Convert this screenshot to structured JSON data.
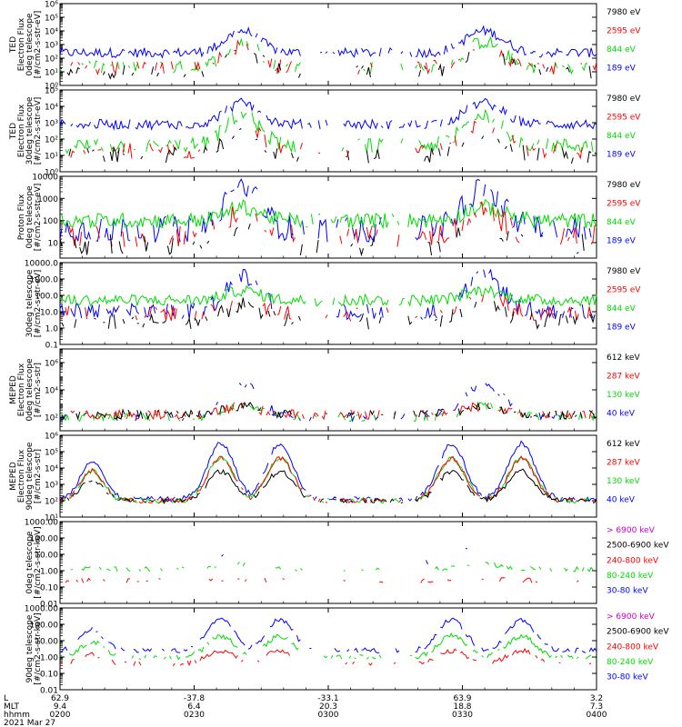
{
  "chart_data": {
    "type": "line",
    "figure": "POES/MetOp TED and MEPED particle flux stack plot",
    "panels": [
      {
        "ylabel_lines": [
          "TED",
          "Electron Flux",
          "0deg telescope",
          "[#/cm2-s-str-eV]"
        ],
        "yscale": "log",
        "ylim_exp": [
          0,
          6
        ],
        "ticks": [
          {
            "v": 0,
            "label": "10⁰"
          },
          {
            "v": 1,
            "label": "10¹"
          },
          {
            "v": 2,
            "label": "10²"
          },
          {
            "v": 3,
            "label": "10³"
          },
          {
            "v": 4,
            "label": "10⁴"
          },
          {
            "v": 5,
            "label": "10⁵"
          },
          {
            "v": 6,
            "label": "10⁶"
          }
        ],
        "series": [
          {
            "name": "7980 eV",
            "color": "#000000",
            "base": 1.0,
            "amp": 0.5,
            "storm": 1.5,
            "sparse": 0.55
          },
          {
            "name": "2595 eV",
            "color": "#ff0000",
            "base": 1.3,
            "amp": 0.5,
            "storm": 1.6,
            "sparse": 0.5
          },
          {
            "name": "844 eV",
            "color": "#00dd00",
            "base": 1.3,
            "amp": 0.5,
            "storm": 1.9,
            "sparse": 0.45
          },
          {
            "name": "189 eV",
            "color": "#0000ff",
            "base": 2.4,
            "amp": 0.35,
            "storm": 1.6,
            "sparse": 0.1
          }
        ]
      },
      {
        "ylabel_lines": [
          "TED",
          "Electron Flux",
          "30deg telescope",
          "[#/cm2-s-str-eV]"
        ],
        "yscale": "log",
        "ylim_exp": [
          0,
          5
        ],
        "ticks": [
          {
            "v": 0,
            "label": "10⁰"
          },
          {
            "v": 1,
            "label": "10¹"
          },
          {
            "v": 2,
            "label": "10²"
          },
          {
            "v": 3,
            "label": "10³"
          },
          {
            "v": 4,
            "label": "10⁴"
          },
          {
            "v": 5,
            "label": "10⁵"
          }
        ],
        "series": [
          {
            "name": "7980 eV",
            "color": "#000000",
            "base": 1.0,
            "amp": 0.5,
            "storm": 1.5,
            "sparse": 0.55
          },
          {
            "name": "2595 eV",
            "color": "#ff0000",
            "base": 1.3,
            "amp": 0.5,
            "storm": 1.6,
            "sparse": 0.5
          },
          {
            "name": "844 eV",
            "color": "#00dd00",
            "base": 1.6,
            "amp": 0.45,
            "storm": 1.9,
            "sparse": 0.35
          },
          {
            "name": "189 eV",
            "color": "#0000ff",
            "base": 2.9,
            "amp": 0.3,
            "storm": 1.3,
            "sparse": 0.1
          }
        ]
      },
      {
        "ylabel_lines": [
          "Proton Flux",
          "0deg telescope",
          "[#/cm2-s-str-eV]"
        ],
        "yscale": "log",
        "ylim_exp": [
          0.3,
          4
        ],
        "ticks": [
          {
            "v": 1,
            "label": "10"
          },
          {
            "v": 2,
            "label": "100"
          },
          {
            "v": 3,
            "label": "1000"
          },
          {
            "v": 4,
            "label": "10000"
          }
        ],
        "series": [
          {
            "name": "7980 eV",
            "color": "#000000",
            "base": 0.9,
            "amp": 0.5,
            "storm": 1.0,
            "sparse": 0.55
          },
          {
            "name": "2595 eV",
            "color": "#ff0000",
            "base": 1.3,
            "amp": 0.5,
            "storm": 1.1,
            "sparse": 0.45
          },
          {
            "name": "844 eV",
            "color": "#00dd00",
            "base": 2.0,
            "amp": 0.35,
            "storm": 0.6,
            "sparse": 0.0
          },
          {
            "name": "189 eV",
            "color": "#0000ff",
            "base": 1.6,
            "amp": 0.6,
            "storm": 1.9,
            "sparse": 0.2
          }
        ]
      },
      {
        "ylabel_lines": [
          "30deg telescope",
          "[#/cm2-s-str-eV]"
        ],
        "yscale": "log",
        "ylim_exp": [
          -1,
          4
        ],
        "ticks": [
          {
            "v": -1,
            "label": "0.1"
          },
          {
            "v": 0,
            "label": "1.0"
          },
          {
            "v": 1,
            "label": "10.0"
          },
          {
            "v": 2,
            "label": "100.0"
          },
          {
            "v": 3,
            "label": "1000.0"
          },
          {
            "v": 4,
            "label": "10000.0"
          }
        ],
        "series": [
          {
            "name": "7980 eV",
            "color": "#000000",
            "base": 0.4,
            "amp": 0.5,
            "storm": 1.0,
            "sparse": 0.5
          },
          {
            "name": "2595 eV",
            "color": "#ff0000",
            "base": 0.9,
            "amp": 0.5,
            "storm": 1.0,
            "sparse": 0.45
          },
          {
            "name": "844 eV",
            "color": "#00dd00",
            "base": 1.7,
            "amp": 0.35,
            "storm": 0.6,
            "sparse": 0.0
          },
          {
            "name": "189 eV",
            "color": "#0000ff",
            "base": 1.0,
            "amp": 0.5,
            "storm": 2.2,
            "sparse": 0.3
          }
        ]
      },
      {
        "ylabel_lines": [
          "MEPED",
          "Electron Flux",
          "0deg telescope",
          "[#/cm2-s-str]"
        ],
        "yscale": "log",
        "ylim_exp": [
          1,
          7
        ],
        "ticks": [
          {
            "v": 2,
            "label": "10²"
          },
          {
            "v": 4,
            "label": "10⁴"
          },
          {
            "v": 6,
            "label": "10⁶"
          }
        ],
        "series": [
          {
            "name": "612 keV",
            "color": "#000000",
            "base": 2.2,
            "amp": 0.35,
            "storm": 0.6,
            "sparse": 0.3
          },
          {
            "name": "287 keV",
            "color": "#ff0000",
            "base": 2.2,
            "amp": 0.35,
            "storm": 0.6,
            "sparse": 0.3
          },
          {
            "name": "130 keV",
            "color": "#00dd00",
            "base": 2.0,
            "amp": 0.3,
            "storm": 0.8,
            "sparse": 0.3
          },
          {
            "name": "40 keV",
            "color": "#0000ff",
            "base": 2.0,
            "amp": 0.3,
            "storm": 2.5,
            "sparse": 0.5
          }
        ]
      },
      {
        "ylabel_lines": [
          "MEPED",
          "Electron Flux",
          "90deg telescope",
          "[#/cm2-s-str]"
        ],
        "yscale": "log",
        "ylim_exp": [
          1,
          6
        ],
        "ticks": [
          {
            "v": 1,
            "label": "10¹"
          },
          {
            "v": 2,
            "label": "10²"
          },
          {
            "v": 3,
            "label": "10³"
          },
          {
            "v": 4,
            "label": "10⁴"
          },
          {
            "v": 5,
            "label": "10⁵"
          },
          {
            "v": 6,
            "label": "10⁶"
          }
        ],
        "lobes": true,
        "series": [
          {
            "name": "612 keV",
            "color": "#000000",
            "base": 2.0,
            "amp": 0.15,
            "storm": 1.8,
            "sparse": 0.2
          },
          {
            "name": "287 keV",
            "color": "#ff0000",
            "base": 2.0,
            "amp": 0.15,
            "storm": 2.6,
            "sparse": 0.2
          },
          {
            "name": "130 keV",
            "color": "#00dd00",
            "base": 2.0,
            "amp": 0.15,
            "storm": 2.6,
            "sparse": 0.2
          },
          {
            "name": "40 keV",
            "color": "#0000ff",
            "base": 2.1,
            "amp": 0.15,
            "storm": 3.4,
            "sparse": 0.1
          }
        ]
      },
      {
        "ylabel_lines": [
          "0deg telescope",
          "[#/cm2-s-str-keV]"
        ],
        "yscale": "log",
        "ylim_exp": [
          -2,
          3
        ],
        "ticks": [
          {
            "v": -2,
            "label": "0.01"
          },
          {
            "v": -1,
            "label": "0.10"
          },
          {
            "v": 0,
            "label": "1.00"
          },
          {
            "v": 1,
            "label": "10.00"
          },
          {
            "v": 2,
            "label": "100.00"
          },
          {
            "v": 3,
            "label": "1000.00"
          }
        ],
        "series": [
          {
            "name": "> 6900 keV",
            "color": "#cc00cc",
            "base": -3,
            "amp": 0,
            "storm": 0,
            "sparse": 1.0
          },
          {
            "name": "2500-6900 keV",
            "color": "#000000",
            "base": -3,
            "amp": 0,
            "storm": 0,
            "sparse": 1.0
          },
          {
            "name": "240-800 keV",
            "color": "#ff0000",
            "base": -0.6,
            "amp": 0.15,
            "storm": 0.1,
            "sparse": 0.6
          },
          {
            "name": "80-240 keV",
            "color": "#00dd00",
            "base": 0.1,
            "amp": 0.15,
            "storm": 0.3,
            "sparse": 0.5
          },
          {
            "name": "30-80 keV",
            "color": "#0000ff",
            "base": 0.5,
            "amp": 0.2,
            "storm": 1.2,
            "sparse": 0.85
          }
        ]
      },
      {
        "ylabel_lines": [
          "90deg telescope",
          "[#/cm2-s-str-keV]"
        ],
        "yscale": "log",
        "ylim_exp": [
          -2,
          3
        ],
        "ticks": [
          {
            "v": -2,
            "label": "0.01"
          },
          {
            "v": -1,
            "label": "0.10"
          },
          {
            "v": 0,
            "label": "1.00"
          },
          {
            "v": 1,
            "label": "10.00"
          },
          {
            "v": 2,
            "label": "100.00"
          },
          {
            "v": 3,
            "label": "1000.00"
          }
        ],
        "lobes": true,
        "series": [
          {
            "name": "> 6900 keV",
            "color": "#cc00cc",
            "base": -3,
            "amp": 0,
            "storm": 0,
            "sparse": 1.0
          },
          {
            "name": "2500-6900 keV",
            "color": "#000000",
            "base": -3,
            "amp": 0,
            "storm": 0,
            "sparse": 1.0
          },
          {
            "name": "240-800 keV",
            "color": "#ff0000",
            "base": -0.4,
            "amp": 0.15,
            "storm": 0.8,
            "sparse": 0.5
          },
          {
            "name": "80-240 keV",
            "color": "#00dd00",
            "base": 0.0,
            "amp": 0.15,
            "storm": 1.3,
            "sparse": 0.3
          },
          {
            "name": "30-80 keV",
            "color": "#0000ff",
            "base": 0.4,
            "amp": 0.15,
            "storm": 1.9,
            "sparse": 0.3
          }
        ]
      }
    ],
    "x_axis": {
      "row_labels": [
        "L",
        "MLT",
        "hhmm"
      ],
      "ticks": [
        {
          "L": "62.9",
          "MLT": "9.4",
          "hhmm": "0200"
        },
        {
          "L": "-37.8",
          "MLT": "6.4",
          "hhmm": "0230"
        },
        {
          "L": "-33.1",
          "MLT": "20.3",
          "hhmm": "0300"
        },
        {
          "L": "63.9",
          "MLT": "18.8",
          "hhmm": "0330"
        },
        {
          "L": "3.2",
          "MLT": "7.3",
          "hhmm": "0400"
        }
      ],
      "date": "2021 Mar 27"
    }
  }
}
